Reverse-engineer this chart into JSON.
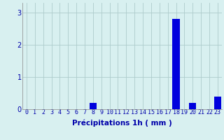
{
  "hours": [
    0,
    1,
    2,
    3,
    4,
    5,
    6,
    7,
    8,
    9,
    10,
    11,
    12,
    13,
    14,
    15,
    16,
    17,
    18,
    19,
    20,
    21,
    22,
    23
  ],
  "values": [
    0,
    0,
    0,
    0,
    0,
    0,
    0,
    0,
    0.2,
    0,
    0,
    0,
    0,
    0,
    0,
    0,
    0,
    0,
    2.8,
    0,
    0.2,
    0,
    0,
    0.4
  ],
  "bar_color": "#0000dd",
  "background_color": "#d8f0f0",
  "grid_color": "#aecccc",
  "xlabel": "Précipitations 1h ( mm )",
  "xlabel_fontsize": 7.5,
  "tick_fontsize": 6,
  "yticks": [
    0,
    1,
    2,
    3
  ],
  "ylim": [
    0,
    3.3
  ],
  "xlim": [
    -0.5,
    23.5
  ]
}
